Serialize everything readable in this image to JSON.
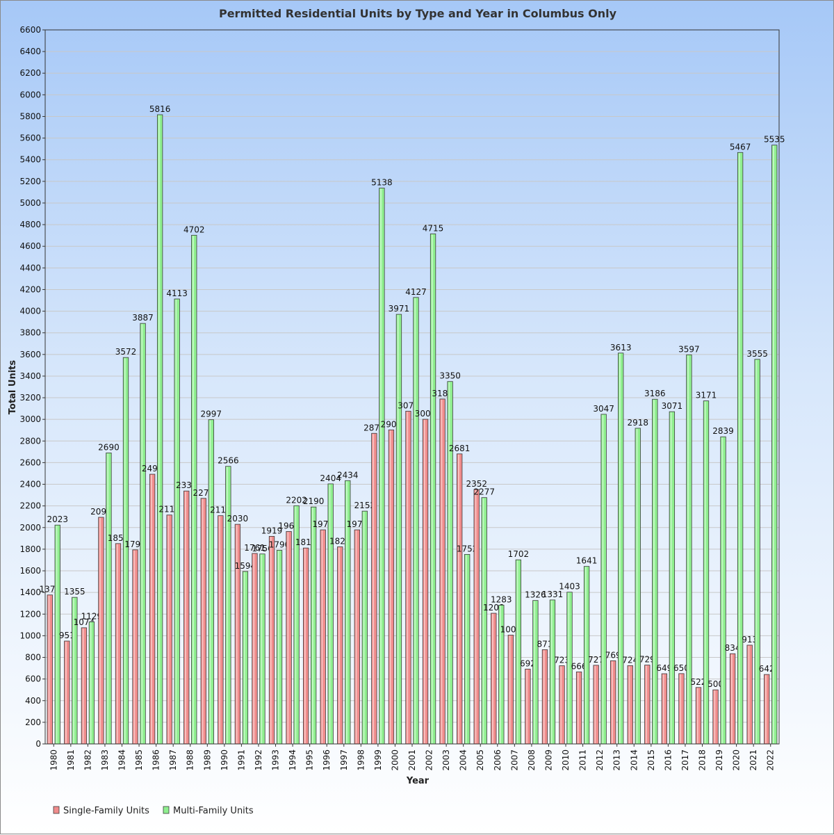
{
  "chart_data": {
    "type": "bar",
    "title": "Permitted Residential Units by Type and Year in Columbus Only",
    "xlabel": "Year",
    "ylabel": "Total Units",
    "ylim": [
      0,
      6600
    ],
    "ytick_step": 200,
    "grid": true,
    "legend_position": "bottom-left",
    "categories": [
      "1980",
      "1981",
      "1982",
      "1983",
      "1984",
      "1985",
      "1986",
      "1987",
      "1988",
      "1989",
      "1990",
      "1991",
      "1992",
      "1993",
      "1994",
      "1995",
      "1996",
      "1997",
      "1998",
      "1999",
      "2000",
      "2001",
      "2002",
      "2003",
      "2004",
      "2005",
      "2006",
      "2007",
      "2008",
      "2009",
      "2010",
      "2011",
      "2012",
      "2013",
      "2014",
      "2015",
      "2016",
      "2017",
      "2018",
      "2019",
      "2020",
      "2021",
      "2022"
    ],
    "series": [
      {
        "name": "Single-Family Units",
        "color": "#f08c8c",
        "values": [
          1377,
          951,
          1074,
          2095,
          1852,
          1794,
          2493,
          2116,
          2338,
          2270,
          2110,
          2030,
          1761,
          1919,
          1964,
          1811,
          1979,
          1822,
          1979,
          2871,
          2903,
          3076,
          3001,
          3188,
          2681,
          2352,
          1208,
          1006,
          692,
          871,
          723,
          666,
          727,
          769,
          724,
          729,
          649,
          650,
          522,
          500,
          834,
          913,
          642
        ],
        "labels": [
          "1377",
          "951",
          "1074",
          "2095",
          "1852",
          "1794",
          "2493",
          "2116",
          "2338",
          "2270",
          "2110",
          "2030",
          "1761",
          "1919",
          "1964",
          "1811",
          "1979",
          "1822",
          "1979",
          "2871",
          "2903",
          "3076",
          "3001",
          "3188",
          "2681",
          "2352",
          "1208",
          "1006",
          "692",
          "871",
          "723",
          "666",
          "727",
          "769",
          "724",
          "729",
          "649",
          "650",
          "522",
          "500",
          "834",
          "913",
          "642"
        ]
      },
      {
        "name": "Multi-Family Units",
        "color": "#8fef8f",
        "values": [
          2023,
          1355,
          1129,
          2690,
          3572,
          3887,
          5816,
          4113,
          4702,
          2997,
          2566,
          1594,
          1756,
          1790,
          2202,
          2190,
          2404,
          2434,
          2152,
          5138,
          3971,
          4127,
          4715,
          3350,
          1752,
          2277,
          1283,
          1702,
          1326,
          1331,
          1403,
          1641,
          3047,
          3613,
          2918,
          3186,
          3071,
          3597,
          3171,
          2839,
          5467,
          3555,
          5535
        ],
        "labels": [
          "2023",
          "1355",
          "1129",
          "2690",
          "3572",
          "3887",
          "5816",
          "4113",
          "4702",
          "2997",
          "2566",
          "1594",
          "1756",
          "1790",
          "2202",
          "2190",
          "2404",
          "2434",
          "2152",
          "5138",
          "3971",
          "4127",
          "4715",
          "3350",
          "1752",
          "2277",
          "1283",
          "1702",
          "1326",
          "1331",
          "1403",
          "1641",
          "3047",
          "3613",
          "2918",
          "3186",
          "3071",
          "3597",
          "3171",
          "2839",
          "5467",
          "3555",
          "5535"
        ]
      }
    ]
  }
}
